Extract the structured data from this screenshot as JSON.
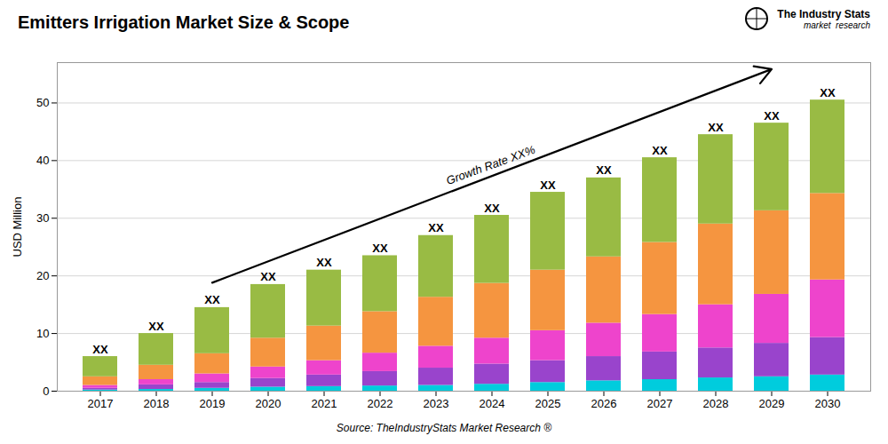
{
  "chart_data": {
    "type": "bar",
    "stacked": true,
    "title": "Emitters Irrigation Market Size & Scope",
    "ylabel": "USD Million",
    "caption": "Source: TheIndustryStats Market Research ®",
    "logo": [
      "The Industry Stats",
      "market  research"
    ],
    "growth_label": "Growth Rate XX%",
    "bar_label": "XX",
    "categories": [
      "2017",
      "2018",
      "2019",
      "2020",
      "2021",
      "2022",
      "2023",
      "2024",
      "2025",
      "2026",
      "2027",
      "2028",
      "2029",
      "2030"
    ],
    "series": [
      {
        "color": "#00ccdd",
        "values": [
          0.2,
          0.3,
          0.5,
          0.7,
          0.8,
          0.9,
          1.0,
          1.2,
          1.5,
          1.8,
          2.0,
          2.3,
          2.5,
          2.8
        ]
      },
      {
        "color": "#9944cc",
        "values": [
          0.3,
          0.8,
          1.0,
          1.5,
          2.0,
          2.5,
          3.0,
          3.5,
          3.8,
          4.2,
          4.8,
          5.2,
          5.8,
          6.5
        ]
      },
      {
        "color": "#ee44cc",
        "values": [
          0.5,
          0.9,
          1.5,
          2.0,
          2.5,
          3.2,
          3.8,
          4.5,
          5.2,
          5.8,
          6.5,
          7.5,
          8.5,
          10.0
        ]
      },
      {
        "color": "#f59540",
        "values": [
          1.5,
          2.5,
          3.5,
          5.0,
          6.0,
          7.2,
          8.5,
          9.5,
          10.5,
          11.5,
          12.5,
          14.0,
          14.5,
          15.0
        ]
      },
      {
        "color": "#99bb44",
        "values": [
          3.5,
          5.5,
          8.0,
          9.3,
          9.7,
          9.7,
          10.7,
          11.8,
          13.5,
          13.7,
          14.7,
          15.5,
          15.2,
          16.2
        ]
      }
    ],
    "ylim": [
      0,
      57
    ],
    "yticks": [
      0,
      10,
      20,
      30,
      40,
      50
    ],
    "grid": true
  }
}
